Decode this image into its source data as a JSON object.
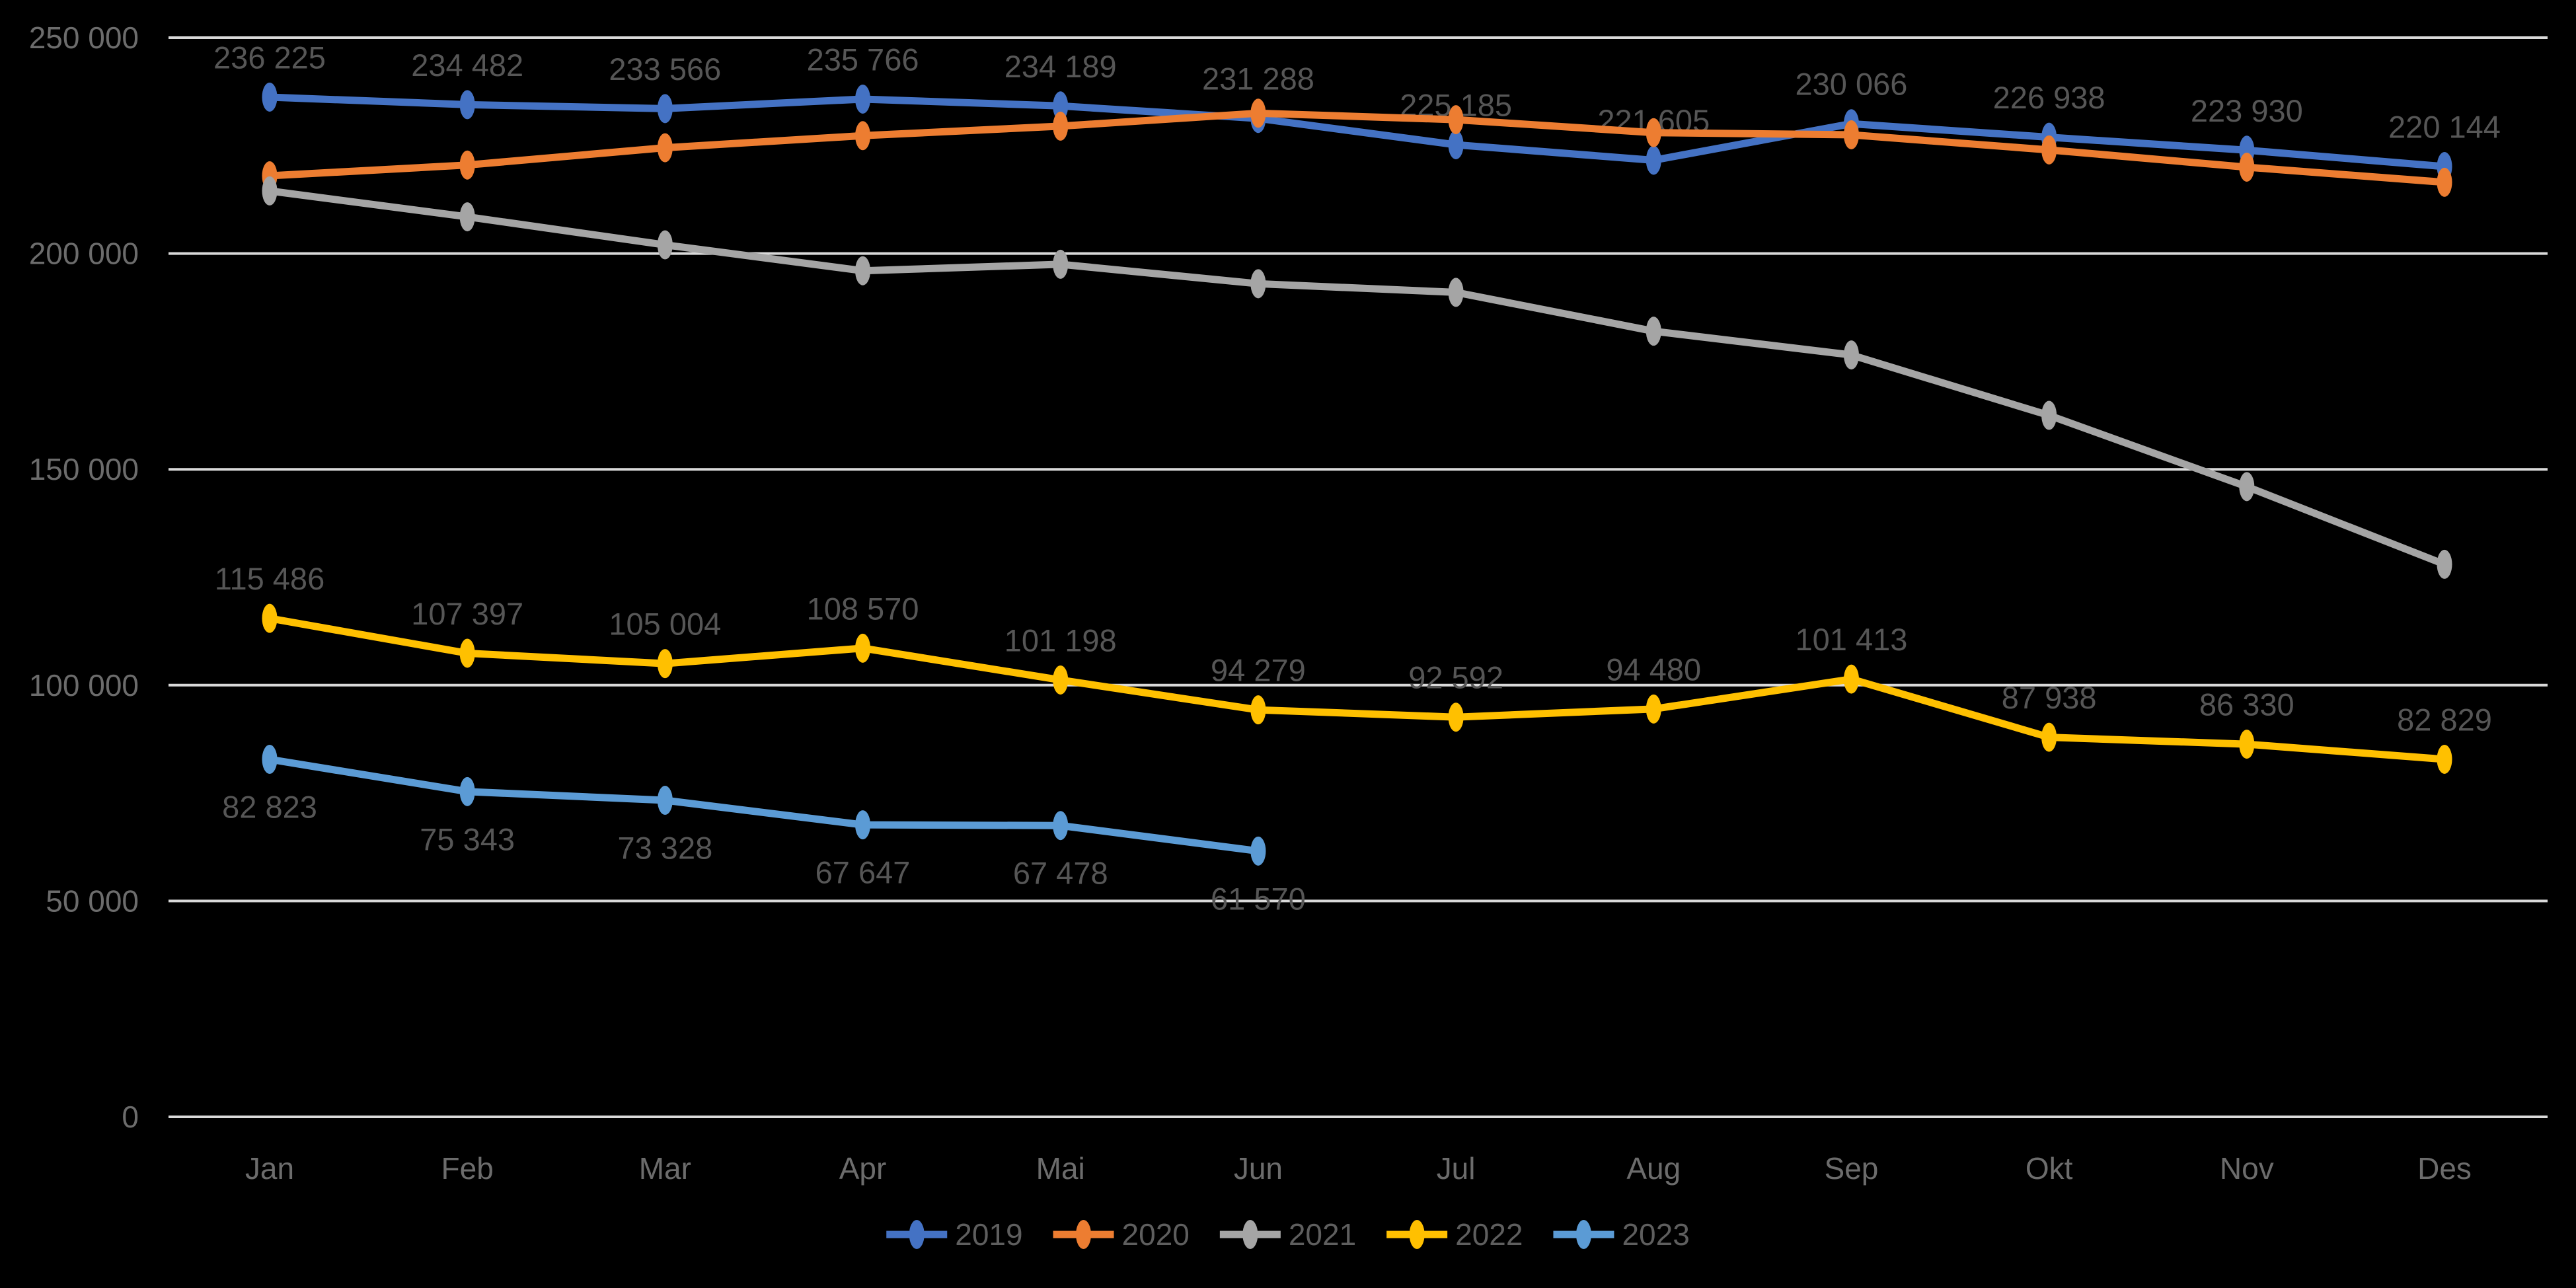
{
  "chart_data": {
    "type": "line",
    "title": "",
    "background_color": "#000000",
    "gridline_color": "#D9D9D9",
    "axis_label_color": "#6C6C6C",
    "data_label_color": "#565656",
    "legend_label_color": "#5E5E5E",
    "grid": true,
    "categories": [
      "Jan",
      "Feb",
      "Mar",
      "Apr",
      "Mai",
      "Jun",
      "Jul",
      "Aug",
      "Sep",
      "Okt",
      "Nov",
      "Des"
    ],
    "y_axis": {
      "min": 0,
      "max": 250000,
      "step": 50000,
      "tick_labels": [
        "0",
        "50 000",
        "100 000",
        "150 000",
        "200 000",
        "250 000"
      ]
    },
    "legend": {
      "position": "bottom",
      "entries": [
        "2019",
        "2020",
        "2021",
        "2022",
        "2023"
      ]
    },
    "series": [
      {
        "name": "2019",
        "color": "#4472C4",
        "labels_visible": true,
        "label_position": "above",
        "estimated": false,
        "values": [
          236225,
          234482,
          233566,
          235766,
          234189,
          231288,
          225185,
          221605,
          230066,
          226938,
          223930,
          220144
        ]
      },
      {
        "name": "2020",
        "color": "#ED7D31",
        "labels_visible": false,
        "label_position": "above",
        "estimated": true,
        "values": [
          218000,
          220500,
          224500,
          227300,
          229500,
          232500,
          231000,
          228000,
          227500,
          224000,
          220000,
          216500
        ]
      },
      {
        "name": "2021",
        "color": "#A5A5A5",
        "labels_visible": false,
        "label_position": "above",
        "estimated": true,
        "values": [
          214500,
          208500,
          202000,
          196000,
          197500,
          193000,
          191000,
          182000,
          176500,
          162500,
          146000,
          128000
        ]
      },
      {
        "name": "2022",
        "color": "#FFC000",
        "labels_visible": true,
        "label_position": "above",
        "estimated": false,
        "values": [
          115486,
          107397,
          105004,
          108570,
          101198,
          94279,
          92592,
          94480,
          101413,
          87938,
          86330,
          82829
        ]
      },
      {
        "name": "2023",
        "color": "#5B9BD5",
        "labels_visible": true,
        "label_position": "below",
        "estimated": false,
        "values": [
          82823,
          75343,
          73328,
          67647,
          67478,
          61570
        ]
      }
    ]
  }
}
